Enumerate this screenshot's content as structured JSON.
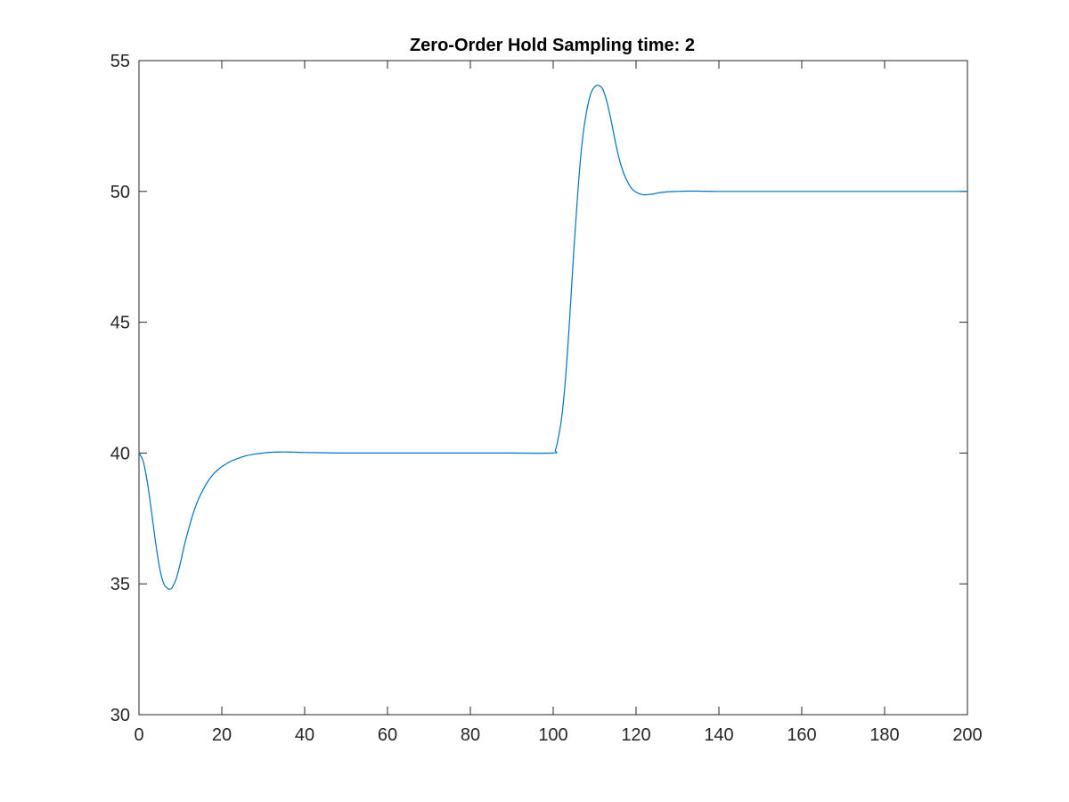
{
  "chart_data": {
    "type": "line",
    "title": "Zero-Order Hold Sampling time: 2",
    "xlabel": "",
    "ylabel": "",
    "xlim": [
      0,
      200
    ],
    "ylim": [
      30,
      55
    ],
    "xticks": [
      0,
      20,
      40,
      60,
      80,
      100,
      120,
      140,
      160,
      180,
      200
    ],
    "yticks": [
      30,
      35,
      40,
      45,
      50,
      55
    ],
    "grid": false,
    "legend": "none",
    "line_color": "#0072BD",
    "series": [
      {
        "x": [
          0,
          1,
          2,
          3,
          4,
          5,
          6,
          7,
          7.5,
          8,
          9,
          10,
          11,
          12,
          13,
          14,
          15,
          16,
          17,
          18,
          19,
          20,
          22,
          24,
          26,
          28,
          30,
          32,
          34,
          36,
          38,
          40,
          45,
          50,
          60,
          70,
          80,
          90,
          100,
          100.5,
          101,
          102,
          103,
          104,
          105,
          106,
          107,
          108,
          109,
          110,
          111,
          112,
          113,
          114,
          115,
          116,
          117,
          118,
          119,
          120,
          121,
          122,
          123,
          124,
          125,
          126,
          128,
          130,
          132,
          135,
          140,
          150,
          160,
          170,
          180,
          190,
          200
        ],
        "y": [
          40,
          39.7,
          38.9,
          37.8,
          36.6,
          35.6,
          35.0,
          34.82,
          34.8,
          34.85,
          35.2,
          35.8,
          36.5,
          37.1,
          37.65,
          38.1,
          38.45,
          38.75,
          39.0,
          39.2,
          39.35,
          39.48,
          39.67,
          39.8,
          39.9,
          39.96,
          40.0,
          40.03,
          40.04,
          40.04,
          40.03,
          40.02,
          40.01,
          40.0,
          40.0,
          40.0,
          40.0,
          40.0,
          40.0,
          40.1,
          40.4,
          41.3,
          42.9,
          45.2,
          47.8,
          50.1,
          51.9,
          53.0,
          53.7,
          54.0,
          54.05,
          53.9,
          53.4,
          52.7,
          51.9,
          51.2,
          50.7,
          50.35,
          50.1,
          49.97,
          49.9,
          49.87,
          49.88,
          49.9,
          49.93,
          49.96,
          49.99,
          50.0,
          50.01,
          50.01,
          50.0,
          50.0,
          50.0,
          50.0,
          50.0,
          50.0,
          50.0
        ]
      }
    ]
  }
}
